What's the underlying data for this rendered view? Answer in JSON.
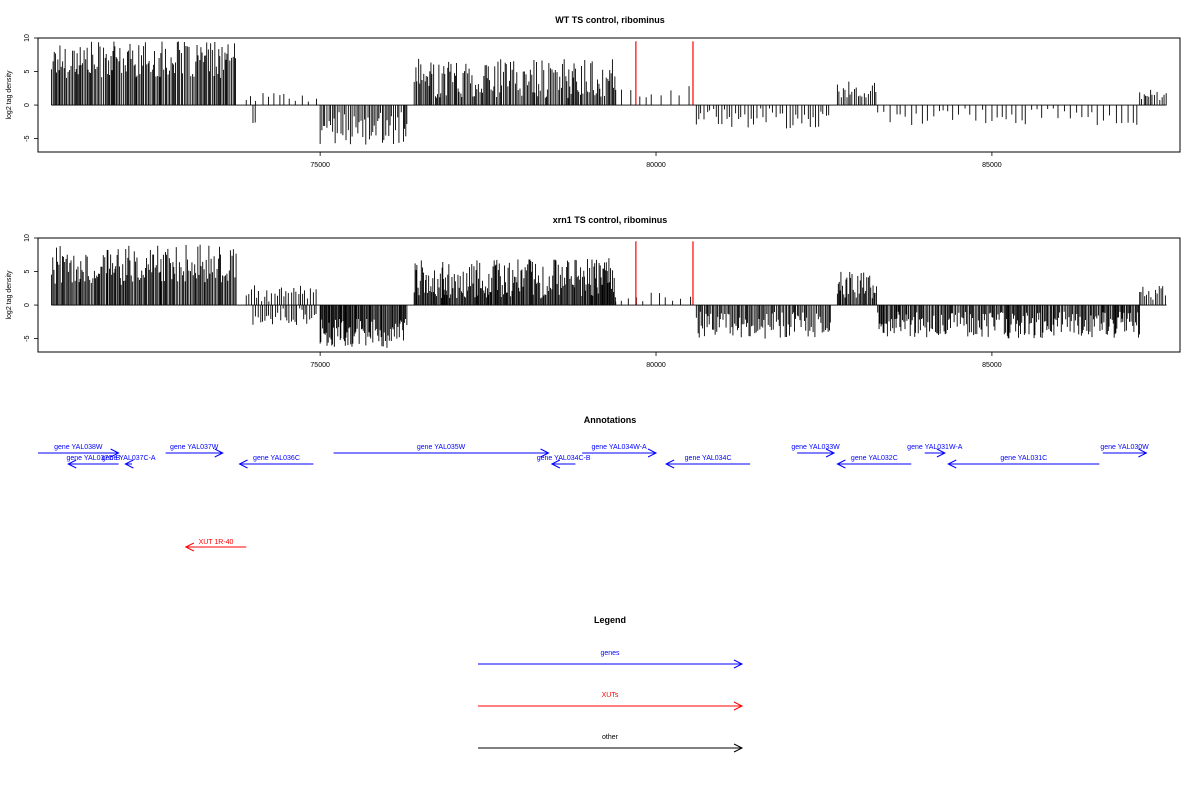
{
  "chart_data": [
    {
      "type": "bar",
      "title": "WT TS control, ribominus",
      "ylabel": "log2 tag density",
      "xlim": [
        70800,
        87800
      ],
      "ylim": [
        -7,
        10
      ],
      "xticks": [
        75000,
        80000,
        85000
      ],
      "yticks": [
        -5,
        0,
        5,
        10
      ],
      "ytick_labels": [
        "-5",
        "0",
        "5",
        "10"
      ],
      "segments": [
        {
          "x0": 71000,
          "x1": 73750,
          "sign": 1,
          "min": 4,
          "max": 9.5,
          "step": 20
        },
        {
          "x0": 73900,
          "x1": 74950,
          "sign": 1,
          "min": 0.5,
          "max": 1.8,
          "step": 90
        },
        {
          "x0": 74000,
          "x1": 74050,
          "sign": -1,
          "min": 2,
          "max": 3,
          "step": 40
        },
        {
          "x0": 75000,
          "x1": 76300,
          "sign": -1,
          "min": 1,
          "max": 6,
          "step": 25
        },
        {
          "x0": 76400,
          "x1": 79400,
          "sign": 1,
          "min": 1,
          "max": 7,
          "step": 20
        },
        {
          "x0": 79400,
          "x1": 80600,
          "sign": 1,
          "min": 0.5,
          "max": 3,
          "step": 110
        },
        {
          "x0": 80600,
          "x1": 82600,
          "sign": -1,
          "min": 0.5,
          "max": 3.5,
          "step": 45
        },
        {
          "x0": 82700,
          "x1": 83300,
          "sign": 1,
          "min": 1,
          "max": 3.5,
          "step": 30
        },
        {
          "x0": 83300,
          "x1": 87200,
          "sign": -1,
          "min": 0.5,
          "max": 3,
          "step": 75
        },
        {
          "x0": 87200,
          "x1": 87600,
          "sign": 1,
          "min": 0.5,
          "max": 2.5,
          "step": 30
        }
      ],
      "markers": [
        79700,
        80550
      ]
    },
    {
      "type": "bar",
      "title": "xrn1 TS control, ribominus",
      "ylabel": "log2 tag density",
      "xlim": [
        70800,
        87800
      ],
      "ylim": [
        -7,
        10
      ],
      "xticks": [
        75000,
        80000,
        85000
      ],
      "yticks": [
        -5,
        0,
        5,
        10
      ],
      "ytick_labels": [
        "-5",
        "0",
        "5",
        "10"
      ],
      "segments": [
        {
          "x0": 71000,
          "x1": 73750,
          "sign": 1,
          "min": 3,
          "max": 9,
          "step": 18
        },
        {
          "x0": 73900,
          "x1": 74950,
          "sign": 1,
          "min": 0.5,
          "max": 3,
          "step": 40
        },
        {
          "x0": 74000,
          "x1": 74950,
          "sign": -1,
          "min": 0.5,
          "max": 3,
          "step": 35
        },
        {
          "x0": 75000,
          "x1": 76300,
          "sign": -1,
          "min": 2,
          "max": 6.5,
          "step": 15
        },
        {
          "x0": 76400,
          "x1": 79400,
          "sign": 1,
          "min": 1,
          "max": 7,
          "step": 15
        },
        {
          "x0": 79400,
          "x1": 80600,
          "sign": 1,
          "min": 0.5,
          "max": 2,
          "step": 110
        },
        {
          "x0": 80600,
          "x1": 82600,
          "sign": -1,
          "min": 1,
          "max": 5,
          "step": 20
        },
        {
          "x0": 82700,
          "x1": 83300,
          "sign": 1,
          "min": 1,
          "max": 5,
          "step": 18
        },
        {
          "x0": 83300,
          "x1": 87200,
          "sign": -1,
          "min": 1,
          "max": 5,
          "step": 18
        },
        {
          "x0": 87200,
          "x1": 87600,
          "sign": 1,
          "min": 0.5,
          "max": 3,
          "step": 30
        }
      ],
      "markers": [
        79700,
        80550
      ]
    }
  ],
  "annotations": {
    "title": "Annotations",
    "genes": [
      {
        "label": "gene YAL038W",
        "start": 70800,
        "end": 72000,
        "strand": "+",
        "row": 0
      },
      {
        "label": "gene YAL037C-B",
        "start": 71250,
        "end": 72000,
        "strand": "-",
        "row": 1
      },
      {
        "label": "gene YAL037C-A",
        "start": 72100,
        "end": 72200,
        "strand": "-",
        "row": 1
      },
      {
        "label": "gene YAL037W",
        "start": 72700,
        "end": 73550,
        "strand": "+",
        "row": 0
      },
      {
        "label": "gene YAL036C",
        "start": 73800,
        "end": 74900,
        "strand": "-",
        "row": 1
      },
      {
        "label": "gene YAL035W",
        "start": 75200,
        "end": 78400,
        "strand": "+",
        "row": 0
      },
      {
        "label": "gene YAL034C-B",
        "start": 78450,
        "end": 78800,
        "strand": "-",
        "row": 1
      },
      {
        "label": "gene YAL034W-A",
        "start": 78900,
        "end": 80000,
        "strand": "+",
        "row": 0
      },
      {
        "label": "gene YAL034C",
        "start": 80150,
        "end": 81400,
        "strand": "-",
        "row": 1
      },
      {
        "label": "gene YAL033W",
        "start": 82100,
        "end": 82650,
        "strand": "+",
        "row": 0
      },
      {
        "label": "gene YAL032C",
        "start": 82700,
        "end": 83800,
        "strand": "-",
        "row": 1
      },
      {
        "label": "gene YAL031W-A",
        "start": 84000,
        "end": 84300,
        "strand": "+",
        "row": 0
      },
      {
        "label": "gene YAL031C",
        "start": 84350,
        "end": 86600,
        "strand": "-",
        "row": 1
      },
      {
        "label": "gene YAL030W",
        "start": 86650,
        "end": 87300,
        "strand": "+",
        "row": 0
      }
    ],
    "xuts": [
      {
        "label": "XUT 1R-40",
        "start": 73000,
        "end": 73900,
        "strand": "-"
      }
    ]
  },
  "legend": {
    "title": "Legend",
    "items": [
      {
        "label": "genes",
        "color": "#0000ff"
      },
      {
        "label": "XUTs",
        "color": "#ff0000"
      },
      {
        "label": "other",
        "color": "#000000"
      }
    ]
  },
  "colors": {
    "gene": "#0000ff",
    "xut": "#ff0000",
    "signal": "#000000",
    "marker": "#ff0000"
  }
}
